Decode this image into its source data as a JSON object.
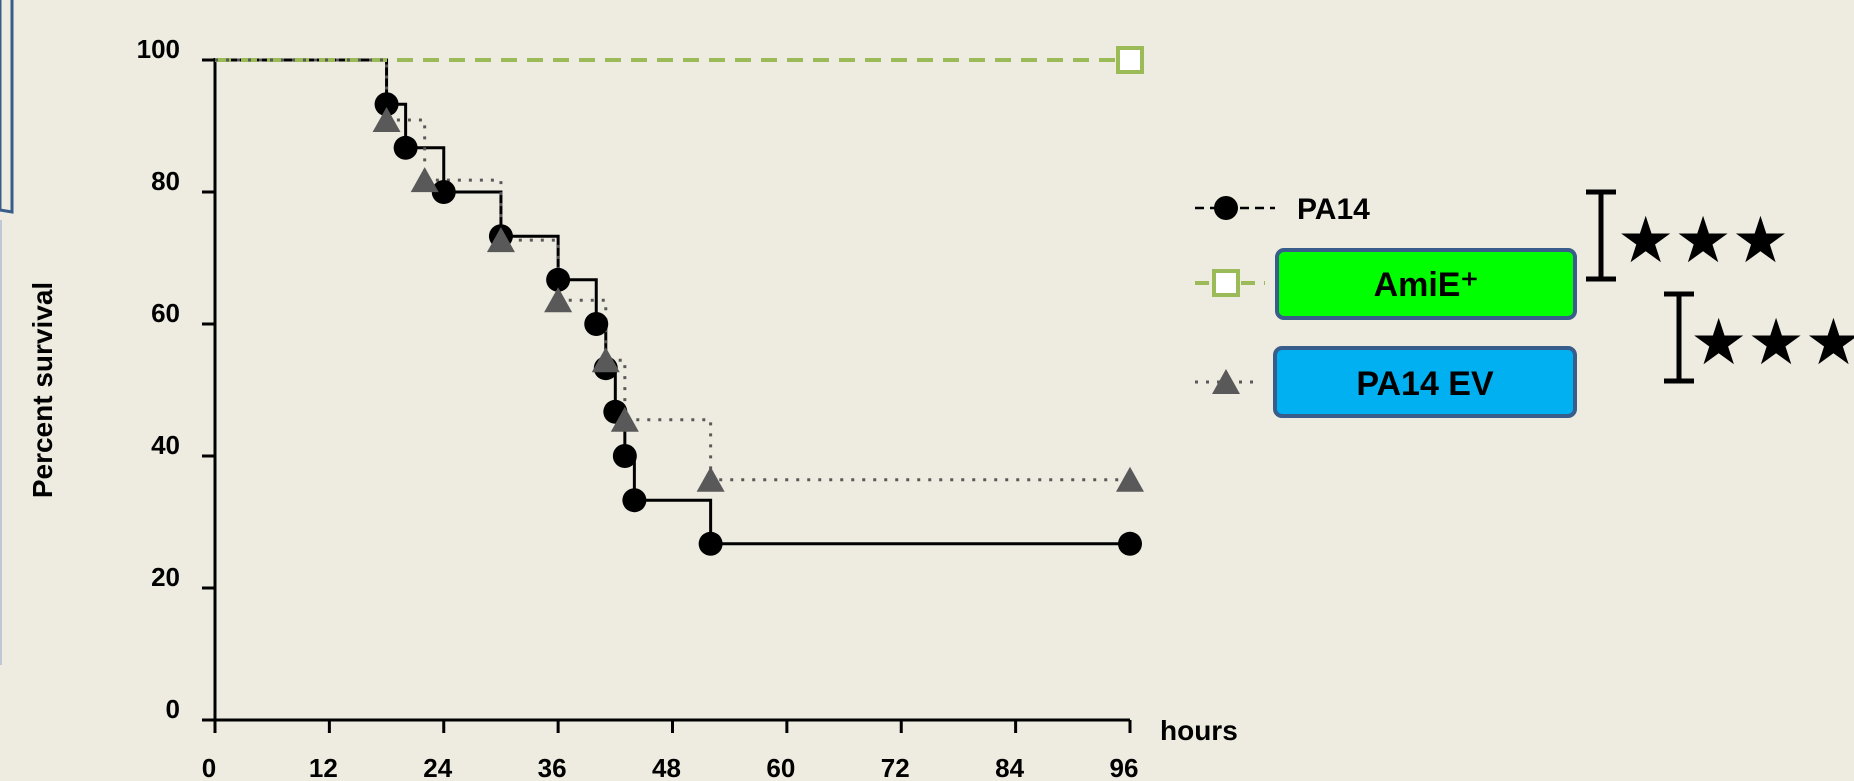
{
  "chart_data": {
    "type": "line",
    "subtype": "kaplan-meier step survival curves",
    "ylabel": "Percent survival",
    "xlabel": "hours",
    "xlim": [
      0,
      96
    ],
    "ylim": [
      0,
      100
    ],
    "x_ticks": [
      "0",
      "12",
      "24",
      "36",
      "48",
      "60",
      "72",
      "84",
      "96"
    ],
    "y_ticks": [
      "0",
      "20",
      "40",
      "60",
      "80",
      "100"
    ],
    "grid": false,
    "legend_position": "right",
    "series": [
      {
        "name": "PA14",
        "color": "#000000",
        "line_style": "solid",
        "marker": "filled-circle",
        "points": [
          [
            0,
            100
          ],
          [
            18,
            93.3
          ],
          [
            20,
            86.7
          ],
          [
            24,
            80
          ],
          [
            30,
            73.3
          ],
          [
            36,
            66.7
          ],
          [
            40,
            60
          ],
          [
            41,
            53.3
          ],
          [
            42,
            46.7
          ],
          [
            43,
            40
          ],
          [
            44,
            33.3
          ],
          [
            52,
            26.7
          ],
          [
            96,
            26.7
          ]
        ]
      },
      {
        "name": "AmiE⁺",
        "color": "#9bbb59",
        "line_style": "dashed",
        "marker": "open-square",
        "points": [
          [
            0,
            100
          ],
          [
            96,
            100
          ]
        ]
      },
      {
        "name": "PA14 EV",
        "color": "#595959",
        "line_style": "dotted",
        "marker": "filled-triangle",
        "points": [
          [
            0,
            100
          ],
          [
            18,
            90.9
          ],
          [
            22,
            81.8
          ],
          [
            30,
            72.7
          ],
          [
            36,
            63.6
          ],
          [
            41,
            54.5
          ],
          [
            43,
            45.5
          ],
          [
            52,
            36.4
          ],
          [
            96,
            36.4
          ]
        ]
      }
    ],
    "legend_boxes": [
      {
        "series": "AmiE⁺",
        "fill": "#00ff00",
        "border": "#385d8a"
      },
      {
        "series": "PA14 EV",
        "fill": "#00b0f0",
        "border": "#385d8a"
      }
    ],
    "annotations": [
      {
        "type": "significance-bracket",
        "text": "★★★",
        "compares": [
          "PA14",
          "AmiE⁺"
        ]
      },
      {
        "type": "significance-bracket",
        "text": "★★★",
        "compares": [
          "AmiE⁺",
          "PA14 EV"
        ]
      }
    ]
  }
}
